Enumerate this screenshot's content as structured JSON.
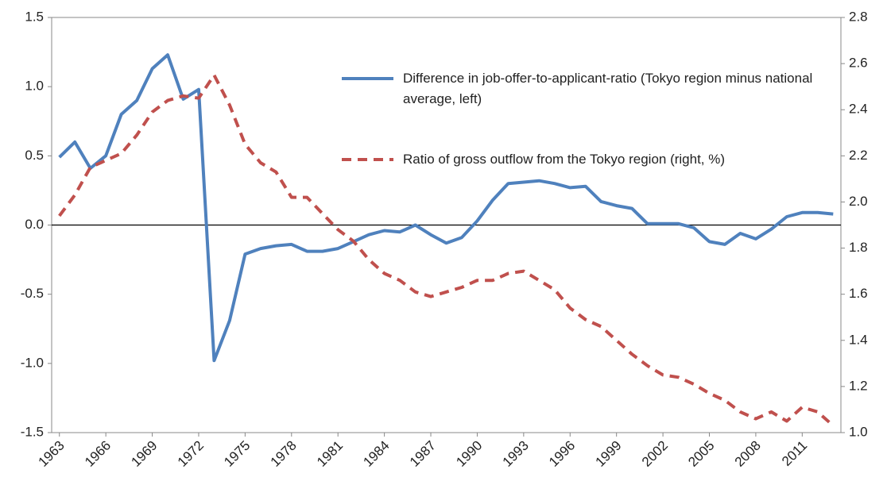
{
  "chart_data": {
    "type": "line",
    "x": [
      1963,
      1964,
      1965,
      1966,
      1967,
      1968,
      1969,
      1970,
      1971,
      1972,
      1973,
      1974,
      1975,
      1976,
      1977,
      1978,
      1979,
      1980,
      1981,
      1982,
      1983,
      1984,
      1985,
      1986,
      1987,
      1988,
      1989,
      1990,
      1991,
      1992,
      1993,
      1994,
      1995,
      1996,
      1997,
      1998,
      1999,
      2000,
      2001,
      2002,
      2003,
      2004,
      2005,
      2006,
      2007,
      2008,
      2009,
      2010,
      2011,
      2012,
      2013
    ],
    "xlim": [
      1962.5,
      2013.5
    ],
    "xticks": [
      1963,
      1966,
      1969,
      1972,
      1975,
      1978,
      1981,
      1984,
      1987,
      1990,
      1993,
      1996,
      1999,
      2002,
      2005,
      2008,
      2011
    ],
    "ylim": [
      -1.5,
      1.5
    ],
    "yticks": [
      1.5,
      {
        "value": 1,
        "label": "1.0"
      },
      0.5,
      {
        "value": 0,
        "label": "0.0"
      },
      -0.5,
      {
        "value": -1,
        "label": "-1.0"
      },
      -1.5
    ],
    "y2lim": [
      1.0,
      2.8
    ],
    "y2ticks": [
      2.8,
      2.6,
      2.4,
      2.2,
      {
        "value": 2,
        "label": "2.0"
      },
      1.8,
      1.6,
      1.4,
      1.2,
      {
        "value": 1,
        "label": "1.0"
      }
    ],
    "legend": "upper right",
    "series": [
      {
        "name": "Difference in job-offer-to-applicant-ratio (Tokyo region minus national average, left)",
        "color": "#4f81bd",
        "linestyle": "solid",
        "values": [
          0.49,
          0.6,
          0.41,
          0.5,
          0.8,
          0.9,
          1.13,
          1.23,
          0.91,
          0.98,
          -0.98,
          -0.69,
          -0.21,
          -0.17,
          -0.15,
          -0.14,
          -0.19,
          -0.19,
          -0.17,
          -0.12,
          -0.07,
          -0.04,
          -0.05,
          0.0,
          -0.07,
          -0.13,
          -0.09,
          0.03,
          0.18,
          0.3,
          0.31,
          0.32,
          0.3,
          0.27,
          0.28,
          0.17,
          0.14,
          0.12,
          0.01,
          0.01,
          0.01,
          -0.02,
          -0.12,
          -0.14,
          -0.06,
          -0.1,
          -0.03,
          0.06,
          0.09,
          0.09,
          0.08
        ]
      },
      {
        "name": "Ratio of gross outflow from the Tokyo region (right, %)",
        "color": "#c0504d",
        "linestyle": "dashed",
        "axis": "y2",
        "values": [
          1.94,
          2.03,
          2.15,
          2.18,
          2.21,
          2.29,
          2.39,
          2.44,
          2.46,
          2.45,
          2.55,
          2.42,
          2.25,
          2.17,
          2.13,
          2.02,
          2.02,
          1.95,
          1.88,
          1.83,
          1.75,
          1.69,
          1.66,
          1.61,
          1.59,
          1.61,
          1.63,
          1.66,
          1.66,
          1.69,
          1.7,
          1.66,
          1.62,
          1.54,
          1.49,
          1.46,
          1.4,
          1.34,
          1.29,
          1.25,
          1.24,
          1.21,
          1.17,
          1.14,
          1.09,
          1.06,
          1.09,
          1.05,
          1.11,
          1.09,
          1.03
        ]
      }
    ]
  }
}
